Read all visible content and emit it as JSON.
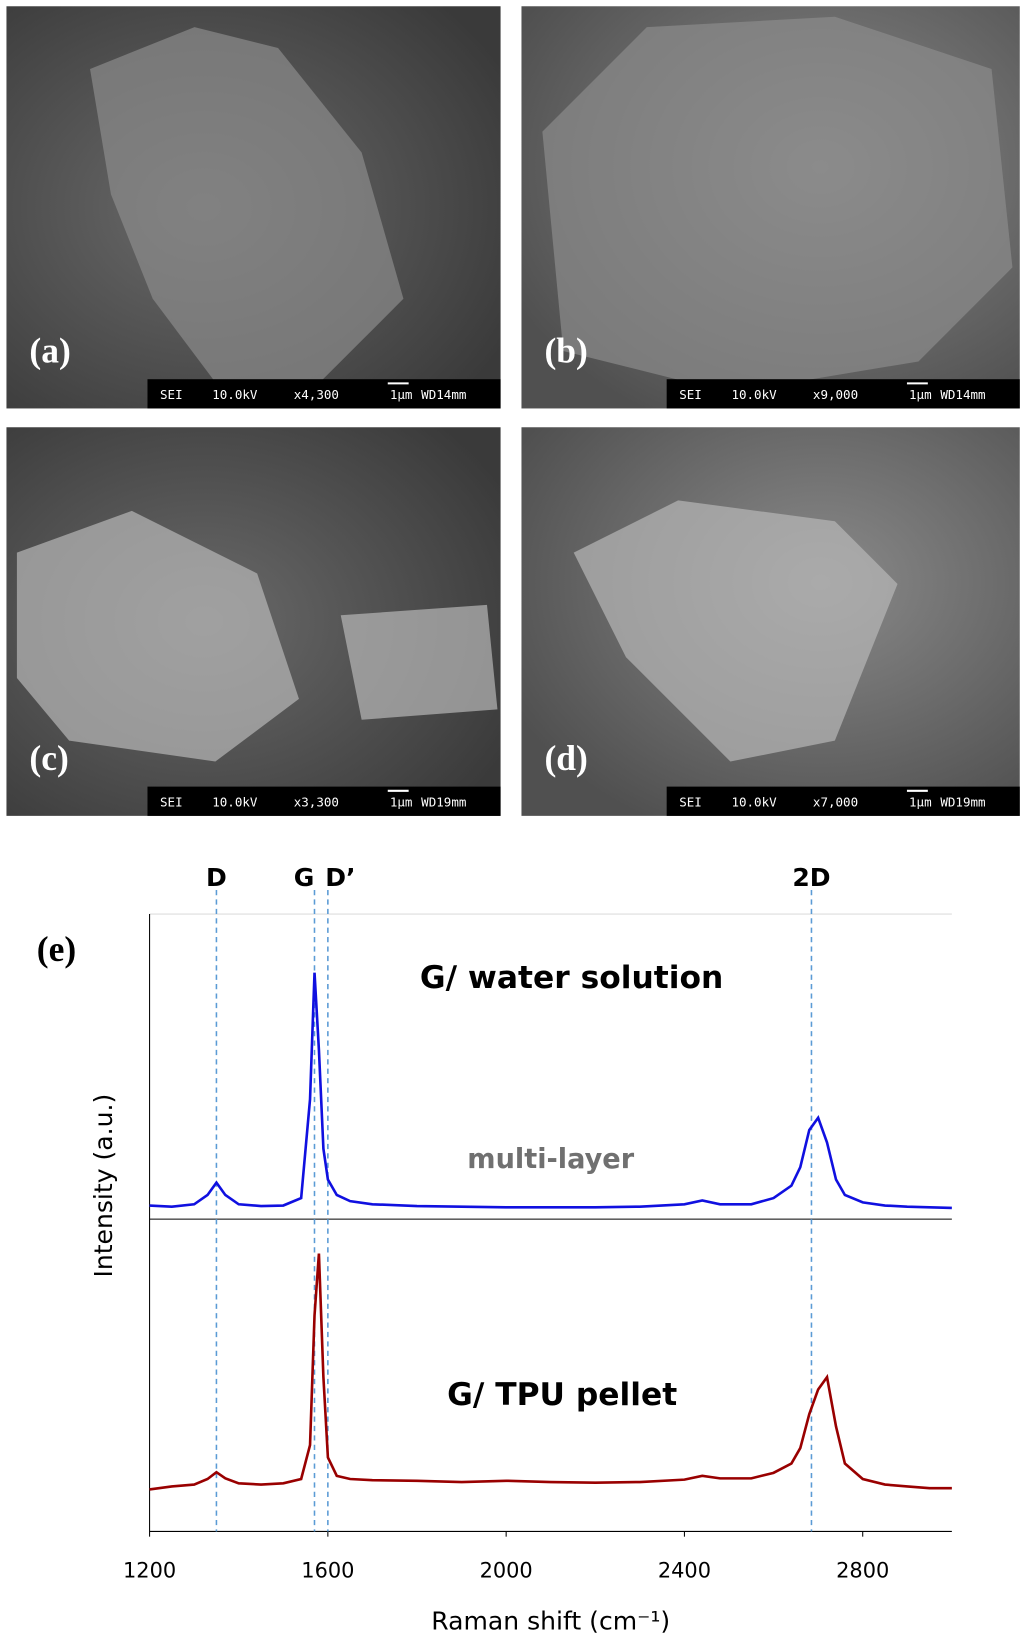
{
  "panels": [
    {
      "label": "(a)",
      "info": [
        "SEI",
        "10.0kV",
        "x4,300",
        "1μm",
        "WD14mm"
      ]
    },
    {
      "label": "(b)",
      "info": [
        "SEI",
        "10.0kV",
        "x9,000",
        "1μm",
        "WD14mm"
      ]
    },
    {
      "label": "(c)",
      "info": [
        "SEI",
        "10.0kV",
        "x3,300",
        "1μm",
        "WD19mm"
      ]
    },
    {
      "label": "(d)",
      "info": [
        "SEI",
        "10.0kV",
        "x7,000",
        "1μm",
        "WD19mm"
      ]
    }
  ],
  "chart_data": {
    "type": "line",
    "panel_label": "(e)",
    "xlabel": "Raman shift (cm⁻¹)",
    "ylabel": "Intensity (a.u.)",
    "xlim": [
      1200,
      3000
    ],
    "ylim": [
      0,
      100
    ],
    "xticks": [
      1200,
      1600,
      2000,
      2400,
      2800
    ],
    "grid": false,
    "x": [
      1200,
      1250,
      1300,
      1330,
      1350,
      1370,
      1400,
      1450,
      1500,
      1540,
      1560,
      1570,
      1580,
      1590,
      1600,
      1620,
      1650,
      1700,
      1800,
      1900,
      2000,
      2100,
      2200,
      2300,
      2400,
      2440,
      2480,
      2550,
      2600,
      2640,
      2660,
      2680,
      2700,
      2720,
      2740,
      2760,
      2800,
      2850,
      2900,
      2950,
      3000
    ],
    "series": [
      {
        "name": "G/ water solution",
        "color": "#1010e0",
        "values": [
          52.8,
          52.6,
          53,
          54.5,
          56.5,
          54.5,
          53,
          52.7,
          52.8,
          54,
          70,
          90.5,
          78,
          62,
          57,
          54.5,
          53.5,
          53,
          52.7,
          52.6,
          52.5,
          52.5,
          52.5,
          52.6,
          53,
          53.6,
          53,
          53,
          54,
          56,
          59,
          65,
          67,
          63,
          57,
          54.5,
          53.3,
          52.8,
          52.6,
          52.5,
          52.4
        ]
      },
      {
        "name": "G/ TPU pellet",
        "color": "#990000",
        "values": [
          6.8,
          7.3,
          7.6,
          8.5,
          9.6,
          8.6,
          7.8,
          7.6,
          7.8,
          8.5,
          14,
          35,
          45,
          25,
          12,
          9,
          8.5,
          8.3,
          8.2,
          8,
          8.2,
          8,
          7.9,
          8,
          8.4,
          9,
          8.6,
          8.6,
          9.5,
          11,
          13.5,
          19,
          23,
          25,
          17,
          11,
          8.5,
          7.6,
          7.3,
          7,
          7
        ]
      }
    ],
    "annotations": [
      "multi-layer"
    ],
    "peaks": [
      {
        "label": "D",
        "x": 1350
      },
      {
        "label": "G",
        "x": 1570
      },
      {
        "label": "D’",
        "x": 1600
      },
      {
        "label": "2D",
        "x": 2685
      }
    ]
  }
}
